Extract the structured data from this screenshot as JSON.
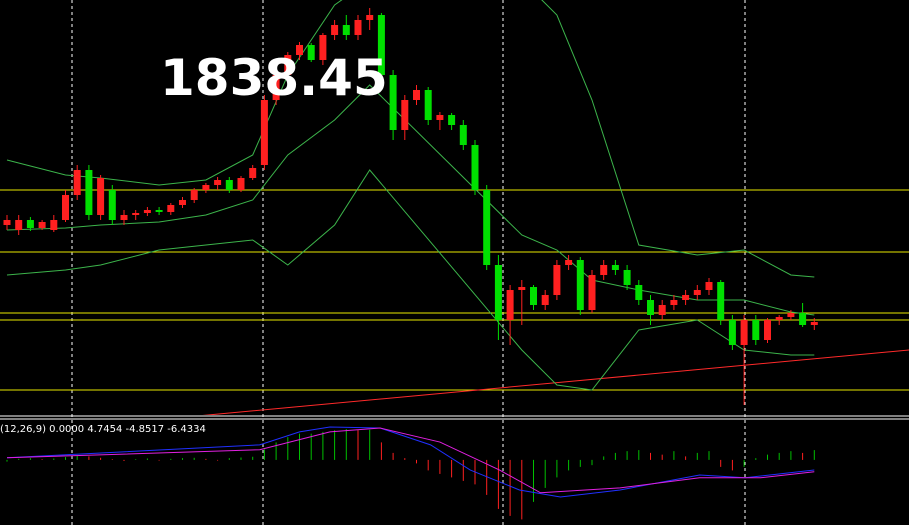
{
  "chart_data": [
    {
      "type": "candlestick",
      "annotation": "1838.45",
      "ylim": [
        1817,
        1900
      ],
      "bull_color": "#ff2020",
      "bear_color": "#00e000",
      "ohlc": [
        [
          1855,
          1857,
          1854,
          1856
        ],
        [
          1854,
          1857,
          1853,
          1856
        ],
        [
          1856,
          1856.6,
          1853.8,
          1854.4
        ],
        [
          1854.4,
          1856,
          1854,
          1855.6
        ],
        [
          1854,
          1857,
          1853.6,
          1856
        ],
        [
          1856,
          1862,
          1855.6,
          1861
        ],
        [
          1861,
          1867,
          1860,
          1866
        ],
        [
          1866,
          1867,
          1856,
          1857
        ],
        [
          1857,
          1865,
          1856,
          1864.4
        ],
        [
          1862,
          1863,
          1855,
          1856
        ],
        [
          1856,
          1858,
          1855,
          1857
        ],
        [
          1857,
          1858,
          1856,
          1857.4
        ],
        [
          1857.4,
          1858.6,
          1856.8,
          1858
        ],
        [
          1858,
          1858.6,
          1857,
          1857.6
        ],
        [
          1857.6,
          1859.4,
          1857,
          1859
        ],
        [
          1859,
          1860.6,
          1858.4,
          1860
        ],
        [
          1860,
          1862.4,
          1859.4,
          1862
        ],
        [
          1862,
          1863.4,
          1861.4,
          1863
        ],
        [
          1863,
          1864.6,
          1862,
          1864
        ],
        [
          1864,
          1864.6,
          1861.4,
          1862
        ],
        [
          1862,
          1864.8,
          1861.6,
          1864.4
        ],
        [
          1864.4,
          1867,
          1864,
          1866.4
        ],
        [
          1867,
          1881,
          1866,
          1880
        ],
        [
          1880,
          1886,
          1879,
          1885
        ],
        [
          1885,
          1889.6,
          1884,
          1889
        ],
        [
          1889,
          1891.6,
          1888,
          1891
        ],
        [
          1891,
          1891.4,
          1887.6,
          1888
        ],
        [
          1888,
          1893.4,
          1887,
          1893
        ],
        [
          1893,
          1896,
          1892,
          1895
        ],
        [
          1895,
          1897,
          1892,
          1893
        ],
        [
          1893,
          1897,
          1892,
          1896
        ],
        [
          1896,
          1898.4,
          1894,
          1897
        ],
        [
          1897,
          1897.4,
          1884,
          1885
        ],
        [
          1885,
          1886,
          1872,
          1874
        ],
        [
          1874,
          1881,
          1872,
          1880
        ],
        [
          1880,
          1883,
          1879,
          1882
        ],
        [
          1882,
          1882.6,
          1875,
          1876
        ],
        [
          1876,
          1877.6,
          1874,
          1877
        ],
        [
          1877,
          1877.4,
          1874,
          1875
        ],
        [
          1875,
          1876,
          1870,
          1871
        ],
        [
          1871,
          1872,
          1861,
          1862
        ],
        [
          1862,
          1863,
          1846,
          1847
        ],
        [
          1847,
          1849,
          1832,
          1836
        ],
        [
          1836,
          1843,
          1831,
          1842
        ],
        [
          1842,
          1844,
          1835,
          1842.6
        ],
        [
          1842.6,
          1843,
          1838,
          1839
        ],
        [
          1839,
          1842,
          1838,
          1841
        ],
        [
          1841,
          1848,
          1840,
          1847
        ],
        [
          1847,
          1849,
          1846,
          1848
        ],
        [
          1848,
          1848.6,
          1837,
          1838
        ],
        [
          1838,
          1846,
          1837.4,
          1845
        ],
        [
          1845,
          1848,
          1844,
          1847
        ],
        [
          1847,
          1848,
          1845,
          1846
        ],
        [
          1846,
          1847,
          1842,
          1843
        ],
        [
          1843,
          1844,
          1839,
          1840
        ],
        [
          1840,
          1841,
          1835,
          1837
        ],
        [
          1837,
          1840,
          1836,
          1839
        ],
        [
          1839,
          1841,
          1838,
          1840
        ],
        [
          1840,
          1842,
          1839,
          1841
        ],
        [
          1841,
          1843,
          1840,
          1842
        ],
        [
          1842,
          1844.4,
          1841,
          1843.6
        ],
        [
          1843.6,
          1844,
          1835,
          1836
        ],
        [
          1836,
          1837,
          1830,
          1831
        ],
        [
          1831,
          1837,
          1819,
          1836
        ],
        [
          1836,
          1837,
          1831,
          1832
        ],
        [
          1832,
          1836.4,
          1831.4,
          1836
        ],
        [
          1836,
          1837,
          1835,
          1836.6
        ],
        [
          1836.6,
          1838,
          1836,
          1837.4
        ],
        [
          1837.4,
          1839.4,
          1834.6,
          1835
        ],
        [
          1835,
          1836.4,
          1834,
          1835.6
        ]
      ],
      "levels": [
        1862,
        1849.6,
        1837.4,
        1836,
        1822
      ],
      "level_color": "#e8e800",
      "trendline": {
        "x": [
          14.4,
          77.1
        ],
        "y": [
          1816.4,
          1830
        ],
        "color": "#ff2a2a"
      },
      "bands": {
        "color": "#3cb44b",
        "x": [
          0,
          5,
          8,
          13,
          17,
          21,
          24,
          28,
          31,
          44,
          47,
          50,
          54,
          59,
          63,
          67,
          69
        ],
        "upper": [
          1868,
          1865,
          1864.4,
          1863,
          1864,
          1869,
          1885,
          1899,
          1904,
          1904,
          1897,
          1880,
          1851,
          1849,
          1850,
          1845,
          1844.6
        ],
        "middle": [
          1854,
          1854.4,
          1855,
          1855.6,
          1857,
          1860,
          1869,
          1876,
          1883,
          1853,
          1850,
          1844,
          1842,
          1840,
          1840,
          1837.6,
          1837
        ],
        "lower": [
          1845,
          1846,
          1847,
          1850,
          1851,
          1852,
          1847,
          1855,
          1866,
          1830,
          1823,
          1822,
          1834,
          1836,
          1830,
          1829,
          1829
        ]
      }
    },
    {
      "type": "macd",
      "label": "(12,26,9) 0.0000 4.7454 -4.8517 -6.4334",
      "ylim": [
        -18.6,
        11.4
      ],
      "rise_color": "#00c000",
      "fall_color": "#ff2020",
      "histogram": [
        -0.5,
        0.3,
        0.5,
        0.2,
        0.4,
        0.8,
        1.2,
        1,
        0.6,
        0.2,
        -0.3,
        0.2,
        0.4,
        -0.2,
        0.3,
        0.5,
        0.6,
        0.3,
        -0.2,
        0.5,
        0.7,
        0.9,
        3,
        5,
        6.5,
        7.5,
        7.5,
        8,
        8.5,
        8.8,
        8.5,
        8.6,
        5,
        2,
        0.5,
        -1,
        -3,
        -4,
        -5,
        -6,
        -7,
        -10,
        -14,
        -16,
        -17,
        -12,
        -8,
        -5,
        -3,
        -2,
        -1.5,
        1,
        2,
        2.5,
        2.8,
        2,
        1.5,
        2.5,
        1,
        2,
        2.5,
        -2,
        -3,
        -2,
        0.5,
        1.5,
        2,
        2.5,
        2,
        2.8
      ],
      "series": [
        {
          "color": "#2030ff",
          "x": [
            0,
            21.6,
            25,
            27.6,
            31.9,
            36.2,
            39.6,
            43.8,
            47.3,
            52.4,
            59.2,
            63.1,
            69
          ],
          "values": [
            0.6,
            4.3,
            8,
            9.4,
            9.1,
            4.3,
            -2.9,
            -8.6,
            -10.6,
            -8.6,
            -4.3,
            -5.1,
            -2.9
          ]
        },
        {
          "color": "#e020e0",
          "x": [
            0,
            21.6,
            27.6,
            31.9,
            37,
            42.1,
            45.6,
            52.4,
            59.2,
            64.4,
            69
          ],
          "values": [
            0.6,
            2.9,
            8,
            9.1,
            5.1,
            -2.9,
            -9.4,
            -8,
            -5.1,
            -5.1,
            -3.4
          ]
        }
      ]
    }
  ]
}
